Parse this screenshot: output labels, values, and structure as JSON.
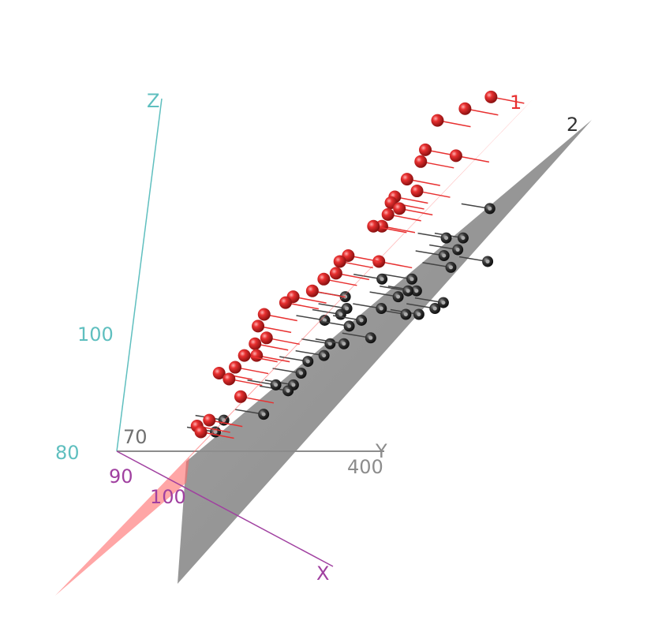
{
  "chart_data": {
    "type": "scatter3d",
    "axes": {
      "x": {
        "label": "X",
        "ticks": [
          "90",
          "100"
        ],
        "color": "#a040a0"
      },
      "y": {
        "label": "Y",
        "ticks": [
          "70",
          "400"
        ],
        "color": "#8c8c8c"
      },
      "z": {
        "label": "Z",
        "ticks": [
          "80",
          "100"
        ],
        "color": "#5fbfbf"
      }
    },
    "groups": [
      {
        "name": "1",
        "color": "#e83030",
        "plane_color": "#ff6b6b"
      },
      {
        "name": "2",
        "color": "#3a3a3a",
        "plane_color": "#8a8a8a"
      }
    ],
    "series": [
      {
        "group": "1",
        "points": [
          [
            100,
            424,
            147
          ],
          [
            100,
            392,
            145
          ],
          [
            100,
            358,
            143
          ],
          [
            100,
            347,
            138
          ],
          [
            100,
            388,
            137
          ],
          [
            100,
            343,
            136
          ],
          [
            100,
            328,
            133
          ],
          [
            100,
            343,
            131
          ],
          [
            100,
            315,
            130
          ],
          [
            100,
            311,
            129
          ],
          [
            100,
            323,
            128
          ],
          [
            100,
            309,
            127
          ],
          [
            100,
            303,
            125
          ],
          [
            100,
            292,
            125
          ],
          [
            100,
            305,
            119
          ],
          [
            100,
            264,
            120
          ],
          [
            100,
            254,
            119
          ],
          [
            100,
            251,
            117
          ],
          [
            100,
            236,
            116
          ],
          [
            100,
            223,
            114
          ],
          [
            100,
            199,
            113
          ],
          [
            100,
            190,
            112
          ],
          [
            100,
            164,
            110
          ],
          [
            100,
            158,
            108
          ],
          [
            100,
            171,
            106
          ],
          [
            100,
            157,
            105
          ],
          [
            100,
            161,
            103
          ],
          [
            100,
            145,
            103
          ],
          [
            100,
            135,
            101
          ],
          [
            100,
            115,
            100
          ],
          [
            100,
            129,
            99
          ],
          [
            100,
            147,
            96
          ],
          [
            100,
            110,
            92
          ],
          [
            100,
            95,
            91
          ],
          [
            100,
            101,
            90
          ]
        ]
      },
      {
        "group": "2",
        "points": [
          [
            100,
            441,
            128
          ],
          [
            100,
            411,
            123
          ],
          [
            100,
            389,
            123
          ],
          [
            100,
            406,
            121
          ],
          [
            100,
            389,
            120
          ],
          [
            100,
            400,
            118
          ],
          [
            100,
            447,
            119
          ],
          [
            100,
            351,
            116
          ],
          [
            100,
            312,
            116
          ],
          [
            100,
            359,
            114
          ],
          [
            100,
            348,
            114
          ],
          [
            100,
            336,
            113
          ],
          [
            100,
            267,
            113
          ],
          [
            100,
            396,
            112
          ],
          [
            100,
            386,
            111
          ],
          [
            100,
            366,
            110
          ],
          [
            100,
            349,
            110
          ],
          [
            100,
            316,
            111
          ],
          [
            100,
            271,
            111
          ],
          [
            100,
            264,
            110
          ],
          [
            100,
            244,
            109
          ],
          [
            100,
            292,
            109
          ],
          [
            100,
            277,
            108
          ],
          [
            100,
            307,
            106
          ],
          [
            100,
            255,
            105
          ],
          [
            100,
            273,
            105
          ],
          [
            100,
            229,
            102
          ],
          [
            100,
            222,
            100
          ],
          [
            100,
            249,
            103
          ],
          [
            100,
            214,
            98
          ],
          [
            100,
            208,
            97
          ],
          [
            100,
            191,
            98
          ],
          [
            100,
            180,
            93
          ],
          [
            100,
            120,
            90
          ],
          [
            100,
            129,
            92
          ]
        ]
      }
    ]
  }
}
